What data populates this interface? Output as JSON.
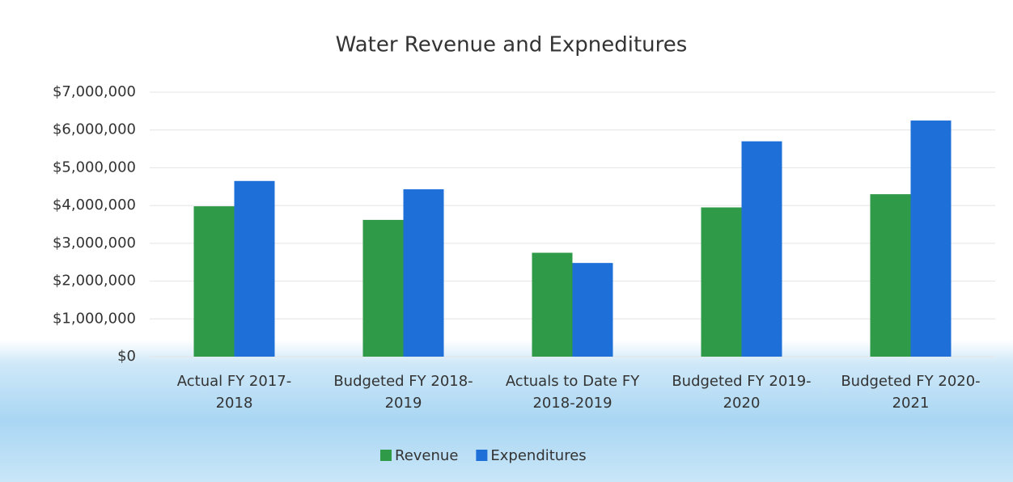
{
  "chart_data": {
    "type": "bar",
    "title": "Water Revenue and Expneditures",
    "categories": [
      "Actual FY 2017-2018",
      "Budgeted FY 2018-2019",
      "Actuals to Date FY 2018-2019",
      "Budgeted FY 2019-2020",
      "Budgeted FY 2020-2021"
    ],
    "series": [
      {
        "name": "Revenue",
        "color": "#2f9a47",
        "values": [
          3980000,
          3620000,
          2750000,
          3950000,
          4300000
        ]
      },
      {
        "name": "Expenditures",
        "color": "#1e6fd8",
        "values": [
          4650000,
          4430000,
          2480000,
          5700000,
          6250000
        ]
      }
    ],
    "ylim": [
      0,
      7000000
    ],
    "yticks": [
      {
        "value": 0,
        "label": "$0"
      },
      {
        "value": 1000000,
        "label": "$1,000,000"
      },
      {
        "value": 2000000,
        "label": "$2,000,000"
      },
      {
        "value": 3000000,
        "label": "$3,000,000"
      },
      {
        "value": 4000000,
        "label": "$4,000,000"
      },
      {
        "value": 5000000,
        "label": "$5,000,000"
      },
      {
        "value": 6000000,
        "label": "$6,000,000"
      },
      {
        "value": 7000000,
        "label": "$7,000,000"
      }
    ],
    "grid": true,
    "legend": "bottom"
  }
}
